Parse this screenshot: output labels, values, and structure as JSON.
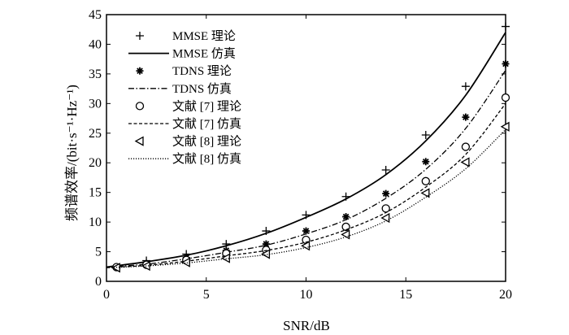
{
  "chart_data": {
    "type": "line",
    "title": "",
    "xlabel": "SNR/dB",
    "ylabel": "频谱效率/(bit·s⁻¹·Hz⁻¹)",
    "xlim": [
      0,
      20
    ],
    "ylim": [
      0,
      45
    ],
    "xticks": [
      "0",
      "5",
      "10",
      "15",
      "20"
    ],
    "yticks": [
      "0",
      "5",
      "10",
      "15",
      "20",
      "25",
      "30",
      "35",
      "40",
      "45"
    ],
    "grid": false,
    "legend_position": "top-left",
    "series": [
      {
        "name": "MMSE 理论",
        "kind": "marker",
        "marker": "plus",
        "x": [
          0.5,
          2,
          4,
          6,
          8,
          10,
          12,
          14,
          16,
          18,
          20
        ],
        "y": [
          2.4,
          3.5,
          4.6,
          6.3,
          8.5,
          11.2,
          14.3,
          18.8,
          24.7,
          32.9,
          43.0
        ]
      },
      {
        "name": "MMSE 仿真",
        "kind": "line",
        "dash": "solid",
        "x": [
          0,
          2,
          4,
          6,
          8,
          10,
          12,
          14,
          16,
          18,
          20
        ],
        "y": [
          2.4,
          3.3,
          4.4,
          6.0,
          8.1,
          10.8,
          13.9,
          18.0,
          23.7,
          31.4,
          42.0
        ]
      },
      {
        "name": "TDNS 理论",
        "kind": "marker",
        "marker": "asterisk",
        "x": [
          0.5,
          2,
          4,
          6,
          8,
          10,
          12,
          14,
          16,
          18,
          20
        ],
        "y": [
          2.4,
          3.0,
          4.0,
          5.2,
          6.3,
          8.5,
          10.9,
          14.8,
          20.2,
          27.7,
          36.7
        ]
      },
      {
        "name": "TDNS 仿真",
        "kind": "line",
        "dash": "dashdot",
        "x": [
          0,
          2,
          4,
          6,
          8,
          10,
          12,
          14,
          16,
          18,
          20
        ],
        "y": [
          2.4,
          2.9,
          3.8,
          4.9,
          6.1,
          8.0,
          10.4,
          14.0,
          18.9,
          25.8,
          35.6
        ]
      },
      {
        "name": "文献 [7] 理论",
        "kind": "marker",
        "marker": "circle",
        "x": [
          0.5,
          2,
          4,
          6,
          8,
          10,
          12,
          14,
          16,
          18,
          20
        ],
        "y": [
          2.4,
          2.8,
          3.6,
          4.7,
          5.3,
          7.0,
          9.2,
          12.3,
          16.9,
          22.7,
          31.0
        ]
      },
      {
        "name": "文献 [7] 仿真",
        "kind": "line",
        "dash": "dashed",
        "x": [
          0,
          2,
          4,
          6,
          8,
          10,
          12,
          14,
          16,
          18,
          20
        ],
        "y": [
          2.3,
          2.7,
          3.4,
          4.3,
          5.2,
          6.6,
          8.7,
          11.6,
          15.9,
          21.4,
          30.0
        ]
      },
      {
        "name": "文献 [8] 理论",
        "kind": "marker",
        "marker": "triangle-left",
        "x": [
          0.5,
          2,
          4,
          6,
          8,
          10,
          12,
          14,
          16,
          18,
          20
        ],
        "y": [
          2.3,
          2.6,
          3.2,
          3.9,
          4.6,
          6.0,
          7.9,
          10.7,
          14.9,
          20.1,
          26.1
        ]
      },
      {
        "name": "文献 [8] 仿真",
        "kind": "line",
        "dash": "dotted",
        "x": [
          0,
          2,
          4,
          6,
          8,
          10,
          12,
          14,
          16,
          18,
          20
        ],
        "y": [
          2.3,
          2.6,
          3.1,
          3.8,
          4.5,
          5.7,
          7.5,
          10.2,
          14.2,
          19.0,
          25.6
        ]
      }
    ]
  }
}
